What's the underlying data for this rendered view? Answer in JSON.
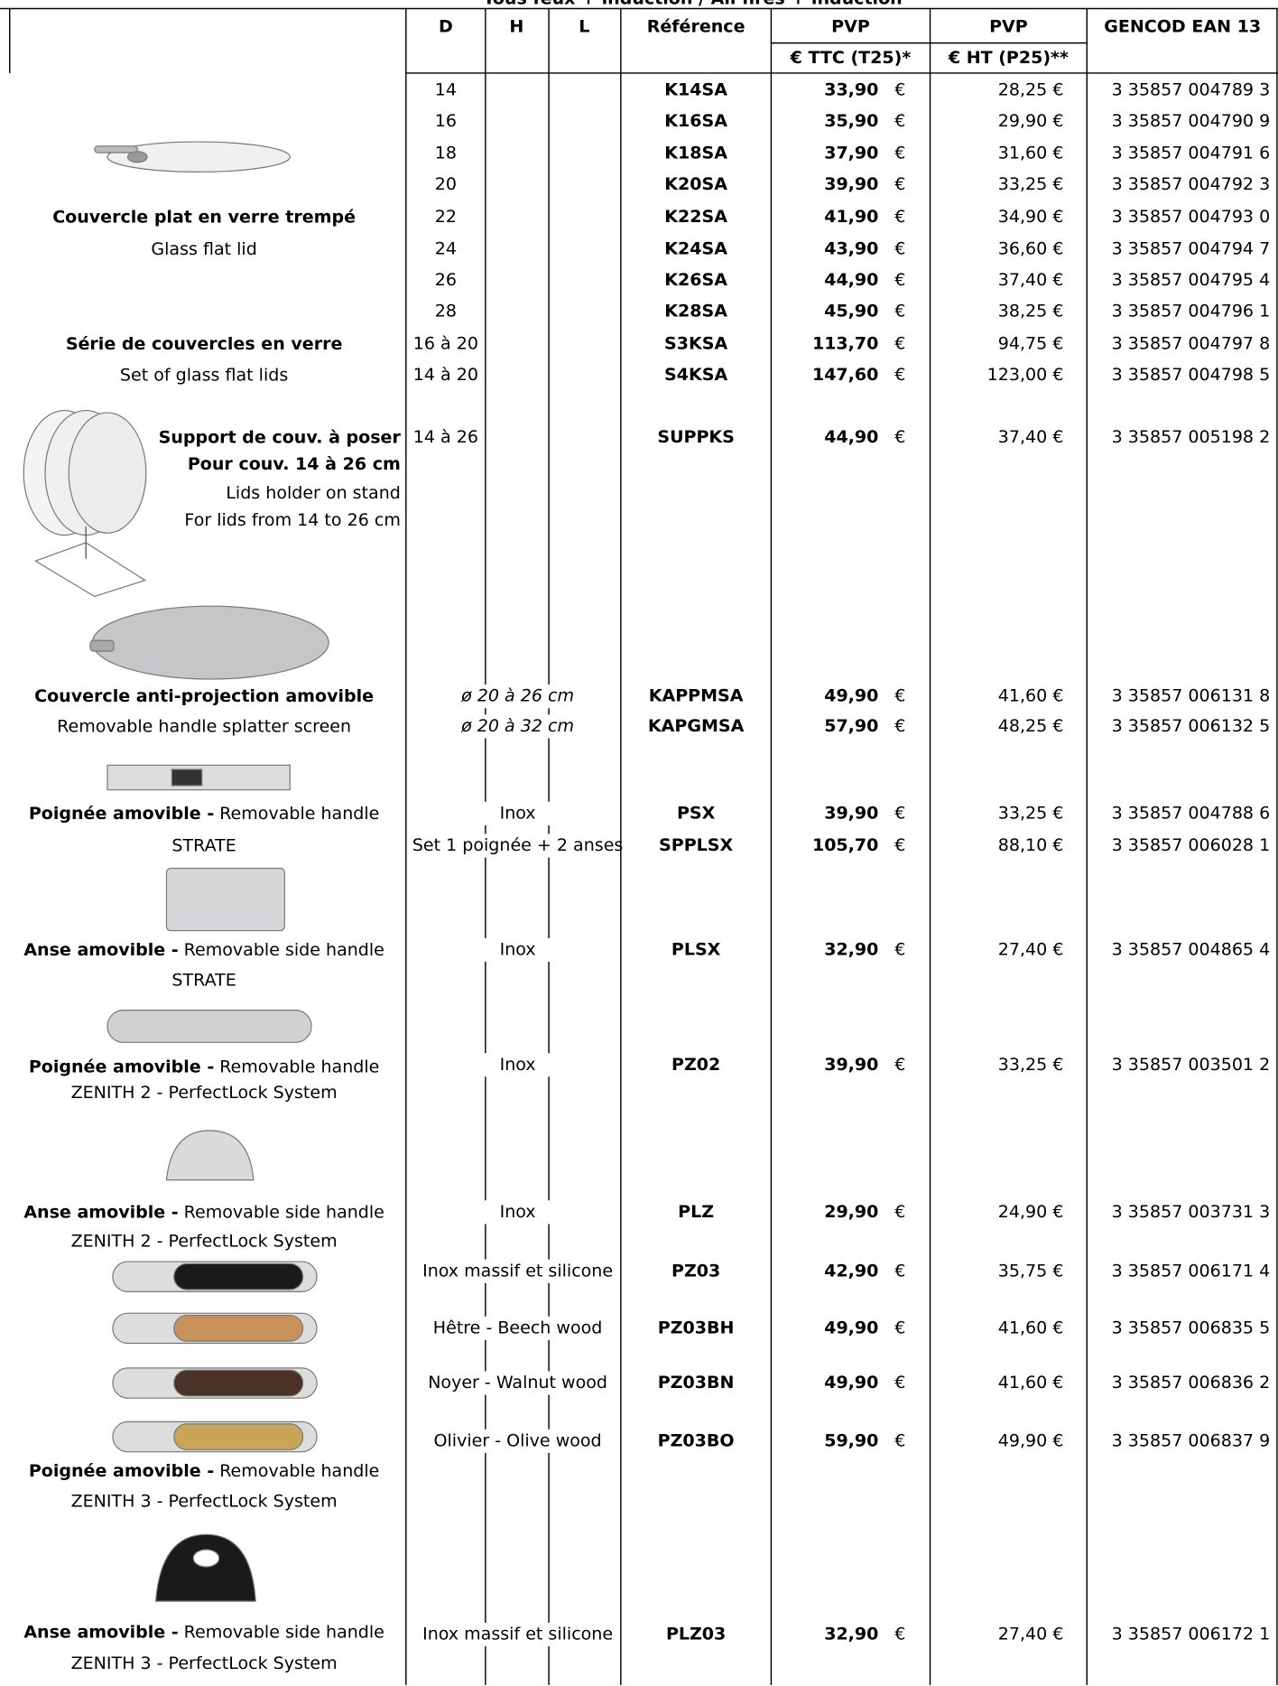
{
  "header": {
    "title": "Tous feux + induction / All fires + induction",
    "columns": [
      "D",
      "H",
      "L",
      "Référence",
      "PVP",
      "PVP",
      "GENCOD EAN 13"
    ],
    "subcolumns": [
      "€ TTC (T25)*",
      "€ HT (P25)**"
    ]
  },
  "currency": "€",
  "rows": [
    {
      "d": "14",
      "ref": "K14SA",
      "ttc": "33,90",
      "ht": "28,25",
      "ean": "3 35857 004789 3"
    },
    {
      "d": "16",
      "ref": "K16SA",
      "ttc": "35,90",
      "ht": "29,90",
      "ean": "3 35857 004790 9"
    },
    {
      "d": "18",
      "ref": "K18SA",
      "ttc": "37,90",
      "ht": "31,60",
      "ean": "3 35857 004791 6"
    },
    {
      "d": "20",
      "ref": "K20SA",
      "ttc": "39,90",
      "ht": "33,25",
      "ean": "3 35857 004792 3"
    },
    {
      "d": "22",
      "ref": "K22SA",
      "ttc": "41,90",
      "ht": "34,90",
      "ean": "3 35857 004793 0"
    },
    {
      "d": "24",
      "ref": "K24SA",
      "ttc": "43,90",
      "ht": "36,60",
      "ean": "3 35857 004794 7"
    },
    {
      "d": "26",
      "ref": "K26SA",
      "ttc": "44,90",
      "ht": "37,40",
      "ean": "3 35857 004795 4"
    },
    {
      "d": "28",
      "ref": "K28SA",
      "ttc": "45,90",
      "ht": "38,25",
      "ean": "3 35857 004796 1"
    },
    {
      "d": "16 à 20",
      "ref": "S3KSA",
      "ttc": "113,70",
      "ht": "94,75",
      "ean": "3 35857 004797 8"
    },
    {
      "d": "14 à 20",
      "ref": "S4KSA",
      "ttc": "147,60",
      "ht": "123,00",
      "ean": "3 35857 004798 5"
    },
    {
      "d": "14 à 26",
      "ref": "SUPPKS",
      "ttc": "44,90",
      "ht": "37,40",
      "ean": "3 35857 005198 2"
    },
    {
      "material": "ø 20 à 26 cm",
      "ref": "KAPPMSA",
      "ttc": "49,90",
      "ht": "41,60",
      "ean": "3 35857 006131 8"
    },
    {
      "material": "ø 20 à 32 cm",
      "ref": "KAPGMSA",
      "ttc": "57,90",
      "ht": "48,25",
      "ean": "3 35857 006132 5"
    },
    {
      "material": "Inox",
      "ref": "PSX",
      "ttc": "39,90",
      "ht": "33,25",
      "ean": "3 35857 004788 6"
    },
    {
      "material": "Set 1 poignée + 2 anses",
      "ref": "SPPLSX",
      "ttc": "105,70",
      "ht": "88,10",
      "ean": "3 35857 006028 1"
    },
    {
      "material": "Inox",
      "ref": "PLSX",
      "ttc": "32,90",
      "ht": "27,40",
      "ean": "3 35857 004865 4"
    },
    {
      "material": "Inox",
      "ref": "PZ02",
      "ttc": "39,90",
      "ht": "33,25",
      "ean": "3 35857 003501 2"
    },
    {
      "material": "Inox",
      "ref": "PLZ",
      "ttc": "29,90",
      "ht": "24,90",
      "ean": "3 35857 003731 3"
    },
    {
      "material": "Inox massif et silicone",
      "ref": "PZ03",
      "ttc": "42,90",
      "ht": "35,75",
      "ean": "3 35857 006171 4"
    },
    {
      "material": "Hêtre - Beech wood",
      "ref": "PZ03BH",
      "ttc": "49,90",
      "ht": "41,60",
      "ean": "3 35857 006835 5"
    },
    {
      "material": "Noyer - Walnut wood",
      "ref": "PZ03BN",
      "ttc": "49,90",
      "ht": "41,60",
      "ean": "3 35857 006836 2"
    },
    {
      "material": "Olivier - Olive wood",
      "ref": "PZ03BO",
      "ttc": "59,90",
      "ht": "49,90",
      "ean": "3 35857 006837 9"
    },
    {
      "material": "Inox massif et silicone",
      "ref": "PLZ03",
      "ttc": "32,90",
      "ht": "27,40",
      "ean": "3 35857 006172 1"
    }
  ],
  "products": [
    {
      "lines": [
        {
          "bold": "Couvercle plat en verre trempé"
        },
        {
          "text": "Glass flat lid"
        }
      ]
    },
    {
      "lines": [
        {
          "bold": "Série de couvercles en verre"
        },
        {
          "text": "Set of glass flat lids"
        }
      ]
    },
    {
      "lines": [
        {
          "bold": "Support de couv. à poser"
        },
        {
          "bold": "Pour couv. 14 à 26 cm"
        },
        {
          "text": "Lids holder on stand"
        },
        {
          "text": "For lids from 14 to 26 cm"
        }
      ]
    },
    {
      "lines": [
        {
          "bold": "Couvercle anti-projection amovible"
        },
        {
          "text": "Removable handle splatter screen"
        }
      ]
    },
    {
      "lines": [
        {
          "bold": "Poignée amovible -",
          "text": "Removable handle"
        },
        {
          "text": "STRATE"
        }
      ]
    },
    {
      "lines": [
        {
          "bold": "Anse amovible -",
          "text": "Removable side handle"
        },
        {
          "text": "STRATE"
        }
      ]
    },
    {
      "lines": [
        {
          "bold": "Poignée amovible -",
          "text": "Removable handle"
        },
        {
          "text": "ZENITH 2 - PerfectLock System"
        }
      ]
    },
    {
      "lines": [
        {
          "bold": "Anse amovible -",
          "text": "Removable side handle"
        },
        {
          "text": "ZENITH 2 - PerfectLock System"
        }
      ]
    },
    {
      "lines": [
        {
          "bold": "Poignée amovible -",
          "text": "Removable handle"
        },
        {
          "text": "ZENITH 3 - PerfectLock System"
        }
      ]
    },
    {
      "lines": [
        {
          "bold": "Anse amovible -",
          "text": "Removable side handle"
        },
        {
          "text": "ZENITH 3 - PerfectLock System"
        }
      ]
    }
  ]
}
